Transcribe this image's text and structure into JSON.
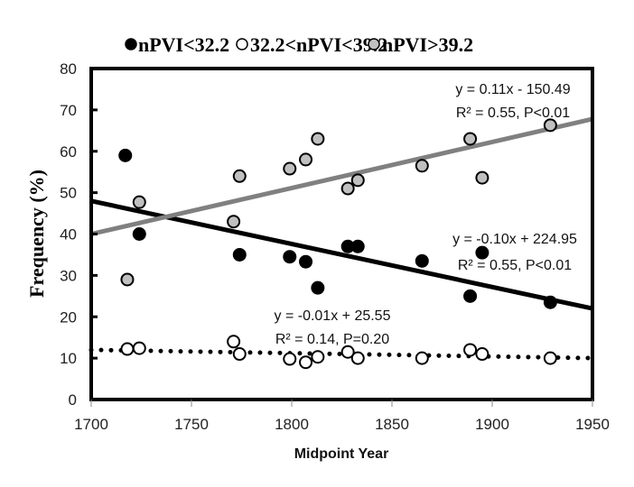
{
  "chart_data": {
    "type": "scatter",
    "title": "",
    "xlabel": "Midpoint Year",
    "ylabel": "Frequency (%)",
    "xlim": [
      1700,
      1950
    ],
    "ylim": [
      0,
      80
    ],
    "xticks": [
      "1700",
      "1750",
      "1800",
      "1850",
      "1900",
      "1950"
    ],
    "yticks": [
      "0",
      "10",
      "20",
      "30",
      "40",
      "50",
      "60",
      "70",
      "80"
    ],
    "grid": false,
    "legend_position": "top",
    "series": [
      {
        "name": "nPVI<32.2",
        "marker_fill": "#000000",
        "marker_stroke": "#000000",
        "x": [
          1717,
          1724,
          1774,
          1799,
          1807,
          1813,
          1828,
          1833,
          1865,
          1889,
          1895,
          1929
        ],
        "y": [
          59,
          40,
          35,
          34.5,
          33.3,
          27,
          37,
          37,
          33.5,
          25,
          35.5,
          23.5
        ],
        "trendline": {
          "slope": -0.1,
          "intercept": 224.95,
          "style": "solid",
          "color": "#000000",
          "equation": "y = -0.10x + 224.95",
          "stats": "R² = 0.55, P<0.01"
        }
      },
      {
        "name": "32.2<nPVI<39.2",
        "marker_fill": "#ffffff",
        "marker_stroke": "#000000",
        "x": [
          1718,
          1724,
          1771,
          1774,
          1799,
          1807,
          1813,
          1828,
          1833,
          1865,
          1889,
          1895,
          1929
        ],
        "y": [
          12.2,
          12.4,
          14,
          11,
          9.8,
          9,
          10.3,
          11.5,
          10,
          10,
          12,
          11,
          10
        ],
        "trendline": {
          "slope": -0.01,
          "intercept": 25.55,
          "style": "dotted",
          "color": "#000000",
          "equation": "y = -0.01x + 25.55",
          "stats": "R² = 0.14, P=0.20"
        }
      },
      {
        "name": "nPVI>39.2",
        "marker_fill": "#c0c0c0",
        "marker_stroke": "#000000",
        "x": [
          1718,
          1724,
          1771,
          1774,
          1799,
          1807,
          1813,
          1828,
          1833,
          1865,
          1889,
          1895,
          1929
        ],
        "y": [
          29,
          47.7,
          43,
          54,
          55.8,
          58,
          63,
          51,
          53,
          56.5,
          63,
          53.6,
          66.3
        ],
        "trendline": {
          "slope": 0.11,
          "intercept": -150.49,
          "style": "solid",
          "color": "#808080",
          "equation": "y = 0.11x - 150.49",
          "stats": "R² = 0.55, P<0.01"
        }
      }
    ]
  }
}
